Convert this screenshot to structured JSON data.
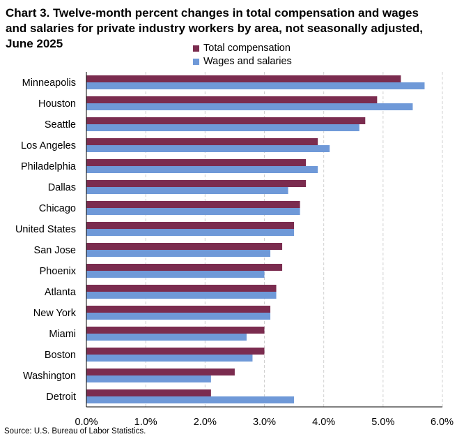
{
  "chart_data": {
    "type": "bar",
    "orientation": "horizontal",
    "title_lines": [
      "Chart 3. Twelve-month percent changes in total compensation and wages",
      "and salaries for private industry workers by area, not seasonally adjusted,",
      "June 2025"
    ],
    "categories": [
      "Minneapolis",
      "Houston",
      "Seattle",
      "Los Angeles",
      "Philadelphia",
      "Dallas",
      "Chicago",
      "United States",
      "San Jose",
      "Phoenix",
      "Atlanta",
      "New York",
      "Miami",
      "Boston",
      "Washington",
      "Detroit"
    ],
    "series": [
      {
        "name": "Total compensation",
        "color": "#7b2c4f",
        "values": [
          5.3,
          4.9,
          4.7,
          3.9,
          3.7,
          3.7,
          3.6,
          3.5,
          3.3,
          3.3,
          3.2,
          3.1,
          3.0,
          3.0,
          2.5,
          2.1
        ]
      },
      {
        "name": "Wages and salaries",
        "color": "#6f99d8",
        "values": [
          5.7,
          5.5,
          4.6,
          4.1,
          3.9,
          3.4,
          3.6,
          3.5,
          3.1,
          3.0,
          3.2,
          3.1,
          2.7,
          2.8,
          2.1,
          3.5
        ]
      }
    ],
    "xlim": [
      0,
      6
    ],
    "xticks": [
      "0.0%",
      "1.0%",
      "2.0%",
      "3.0%",
      "4.0%",
      "5.0%",
      "6.0%"
    ],
    "grid": "vertical dashed",
    "legend_position": "top"
  },
  "source": "Source: U.S. Bureau of Labor Statistics."
}
